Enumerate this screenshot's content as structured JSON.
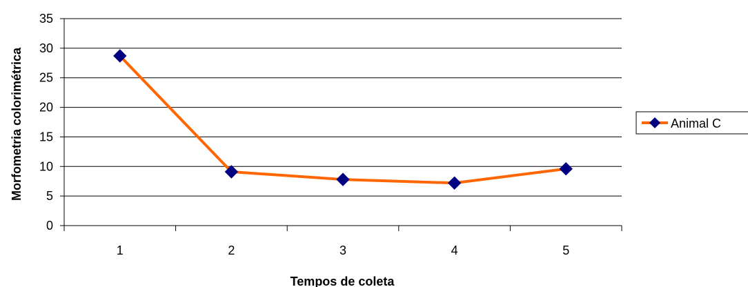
{
  "chart_data": {
    "type": "line",
    "title": "",
    "xlabel": "Tempos de coleta",
    "ylabel": "Morfometria colorimétrica",
    "categories": [
      "1",
      "2",
      "3",
      "4",
      "5"
    ],
    "series": [
      {
        "name": "Animal C",
        "values": [
          28.7,
          9.1,
          7.8,
          7.2,
          9.6
        ],
        "color": "#FF6600",
        "marker": "diamond",
        "marker_color": "#000080"
      }
    ],
    "ylim": [
      0,
      35
    ],
    "yticks": [
      0,
      5,
      10,
      15,
      20,
      25,
      30,
      35
    ],
    "grid": "horizontal",
    "legend_position": "right"
  }
}
